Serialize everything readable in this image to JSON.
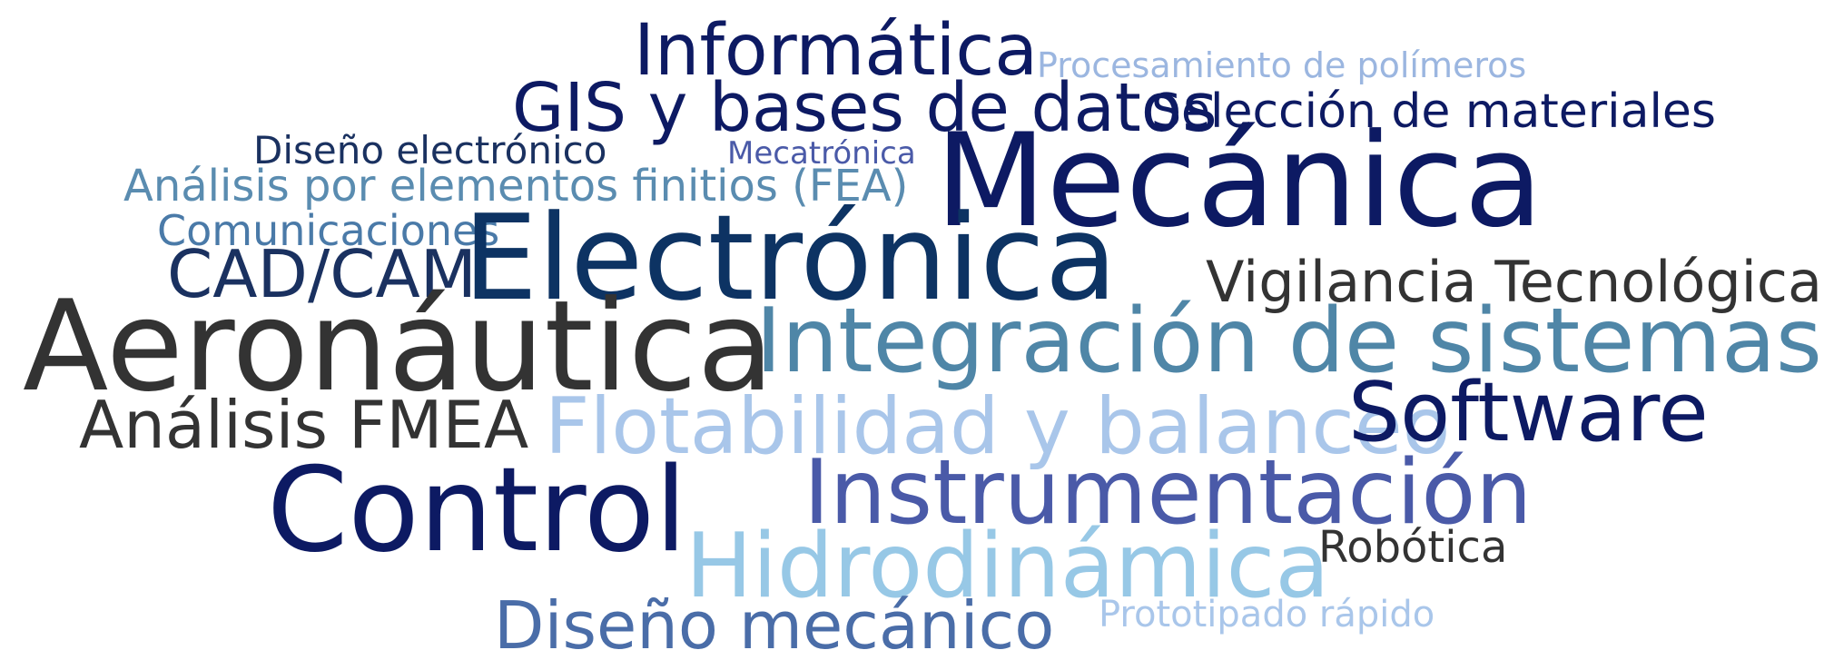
{
  "words": {
    "informatica": {
      "text": "Informática",
      "color": "#0d1a63"
    },
    "procesamiento": {
      "text": "Procesamiento de polímeros",
      "color": "#9bb6e0"
    },
    "gis": {
      "text": "GIS y bases de datos",
      "color": "#0d1a63"
    },
    "seleccion": {
      "text": "Selección de materiales",
      "color": "#0d1a63"
    },
    "diseno_elec": {
      "text": "Diseño electrónico",
      "color": "#1a3160"
    },
    "mecatronica": {
      "text": "Mecatrónica",
      "color": "#4a5aa8"
    },
    "mecanica": {
      "text": "Mecánica",
      "color": "#0d1a63"
    },
    "fea": {
      "text": "Análisis por elementos finitios (FEA)",
      "color": "#5a8cb0"
    },
    "comunicaciones": {
      "text": "Comunicaciones",
      "color": "#4a7aa8"
    },
    "electronica": {
      "text": "Electrónica",
      "color": "#0d3363"
    },
    "cadcam": {
      "text": "CAD/CAM",
      "color": "#1a3160"
    },
    "vigilancia": {
      "text": "Vigilancia Tecnológica",
      "color": "#333333"
    },
    "aeronautica": {
      "text": "Aeronáutica",
      "color": "#333333"
    },
    "integracion": {
      "text": "Integración de sistemas",
      "color": "#4f86a7"
    },
    "fmea": {
      "text": "Análisis FMEA",
      "color": "#333333"
    },
    "flotabilidad": {
      "text": "Flotabilidad y balanceo",
      "color": "#a9c6ea"
    },
    "software": {
      "text": "Software",
      "color": "#0d1a63"
    },
    "instrumentacion": {
      "text": "Instrumentación",
      "color": "#4a5aa8"
    },
    "control": {
      "text": "Control",
      "color": "#0d1a63"
    },
    "robotica": {
      "text": "Robótica",
      "color": "#333333"
    },
    "hidrodinamica": {
      "text": "Hidrodinámica",
      "color": "#97c8e6"
    },
    "prototipado": {
      "text": "Prototipado rápido",
      "color": "#a9c6ea"
    },
    "diseno_mec": {
      "text": "Diseño mecánico",
      "color": "#4a6da8"
    }
  }
}
